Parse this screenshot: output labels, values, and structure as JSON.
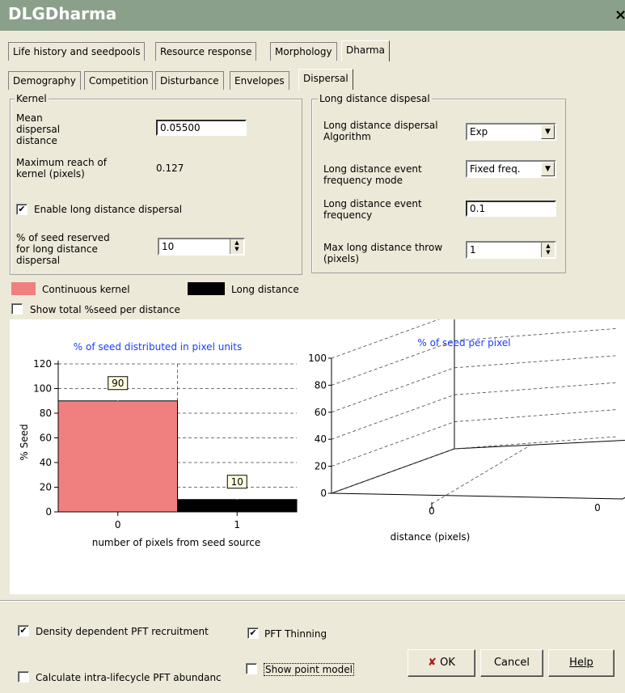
{
  "window": {
    "title": "DLGDharma",
    "close": "×"
  },
  "main_tabs": [
    "Life history and seedpools",
    "Resource response",
    "Morphology",
    "Dharma"
  ],
  "sub_tabs": [
    "Demography",
    "Competition",
    "Disturbance",
    "Envelopes",
    "Dispersal"
  ],
  "kernel": {
    "group_label": "Kernel",
    "mean_label": "Mean dispersal distance",
    "mean_value": "0.05500",
    "max_reach_label": "Maximum reach of kernel (pixels)",
    "max_reach_value": "0.127",
    "enable_ld_label": "Enable long distance dispersal",
    "enable_ld_checked": true,
    "reserved_label": "% of seed reserved for long distance dispersal",
    "reserved_value": "10"
  },
  "long_distance": {
    "group_label": "Long distance dispesal",
    "algorithm_label": "Long distance dispersal Algorithm",
    "algorithm_value": "Exp",
    "freq_mode_label": "Long distance event frequency mode",
    "freq_mode_value": "Fixed freq.",
    "freq_label": "Long distance event frequency",
    "freq_value": "0.1",
    "max_throw_label": "Max long distance throw (pixels)",
    "max_throw_value": "1"
  },
  "legend": {
    "continuous": "Continuous kernel",
    "continuous_color": "#f08080",
    "long": "Long distance",
    "long_color": "#000000",
    "show_total": "Show total %seed per distance"
  },
  "chart_data": [
    {
      "type": "bar",
      "title": "% of seed distributed in pixel units",
      "xlabel": "number of pixels from seed source",
      "ylabel": "% Seed",
      "categories": [
        "0",
        "1"
      ],
      "series": [
        {
          "name": "Continuous kernel",
          "values": [
            90,
            0
          ],
          "color": "#f08080"
        },
        {
          "name": "Long distance",
          "values": [
            0,
            10
          ],
          "color": "#000000"
        }
      ],
      "data_labels": [
        "90",
        "10"
      ],
      "ylim": [
        0,
        120
      ],
      "yticks": [
        "0",
        "20",
        "40",
        "60",
        "80",
        "100",
        "120"
      ]
    },
    {
      "type": "bar",
      "title": "% of seed per pixel",
      "xlabel": "distance (pixels)",
      "xticks": [
        "0"
      ],
      "ztick": "0",
      "ylim": [
        0,
        100
      ],
      "yticks": [
        "0",
        "20",
        "40",
        "60",
        "80",
        "100"
      ]
    }
  ],
  "options": {
    "density_label": "Density dependent PFT recruitment",
    "density_checked": true,
    "thinning_label": "PFT Thinning",
    "thinning_checked": true,
    "intra_label": "Calculate intra-lifecycle PFT abundanc",
    "intra_checked": false,
    "point_model_label": "Show point model",
    "point_model_checked": false
  },
  "buttons": {
    "ok": "OK",
    "cancel": "Cancel",
    "help": "Help"
  }
}
